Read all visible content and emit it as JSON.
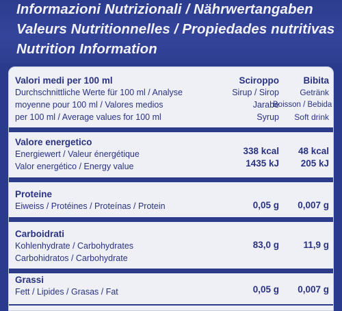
{
  "header": {
    "lines": [
      "Informazioni Nutrizionali / Nährwertangaben",
      "Valeurs Nutritionnelles / Propiedades nutritivas",
      "Nutrition Information"
    ]
  },
  "table": {
    "intro": {
      "title": "Valori medi per 100 ml",
      "lines": [
        "Durchschnittliche Werte für 100 ml / Analyse",
        "moyenne pour 100 ml / Valores medios",
        "per 100 ml / Average values for 100 ml"
      ]
    },
    "columns": {
      "syrup": {
        "title": "Sciroppo",
        "lines": [
          "Sirup / Sirop",
          "Jarabe",
          "Syrup"
        ]
      },
      "drink": {
        "title": "Bibita",
        "lines": [
          "Getränk",
          "Boisson / Bebida",
          "Soft drink"
        ]
      }
    },
    "energy": {
      "title": "Valore energetico",
      "lines": [
        "Energiewert / Valeur énergétique",
        "Valor energético / Energy value"
      ],
      "syrup_kcal": "338 kcal",
      "syrup_kj": "1435 kJ",
      "drink_kcal": "48 kcal",
      "drink_kj": "205 kJ"
    },
    "protein": {
      "title": "Proteine",
      "line": "Eiweiss / Protéines / Proteínas / Protein",
      "syrup": "0,05 g",
      "drink": "0,007 g"
    },
    "carbs": {
      "title": "Carboidrati",
      "lines": [
        "Kohlenhydrate / Carbohydrates",
        "Carbohidratos / Carbohydrate"
      ],
      "syrup": "83,0 g",
      "drink": "11,9 g"
    },
    "fat": {
      "title": "Grassi",
      "line": "Fett / Lipides / Grasas / Fat",
      "syrup": "0,05 g",
      "drink": "0,007 g"
    }
  }
}
